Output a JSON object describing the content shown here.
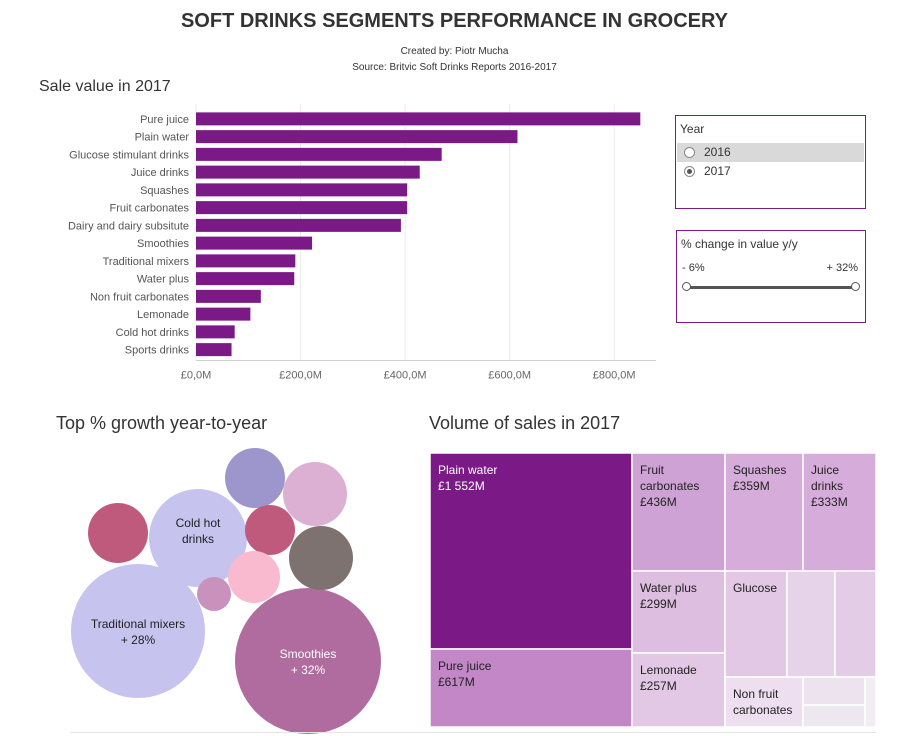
{
  "header": {
    "title": "SOFT DRINKS SEGMENTS PERFORMANCE IN GROCERY",
    "created_by": "Created by: Piotr Mucha",
    "source": "Source: Britvic Soft Drinks Reports 2016-2017"
  },
  "year_filter": {
    "title": "Year",
    "options": [
      "2016",
      "2017"
    ],
    "selected": "2017"
  },
  "change_filter": {
    "title": "% change in value y/y",
    "min_label": "- 6%",
    "max_label": "+ 32%",
    "range": [
      -6,
      32
    ]
  },
  "colors": {
    "bar": "#7b1a86",
    "panel_border": "#7b1a86"
  },
  "chart_data": [
    {
      "type": "bar",
      "orientation": "horizontal",
      "title": "Sale value in 2017",
      "categories": [
        "Pure juice",
        "Plain water",
        "Glucose stimulant drinks",
        "Juice drinks",
        "Squashes",
        "Fruit carbonates",
        "Dairy and dairy subsitute",
        "Smoothies",
        "Traditional mixers",
        "Water plus",
        "Non fruit carbonates",
        "Lemonade",
        "Cold hot drinks",
        "Sports drinks"
      ],
      "values": [
        850,
        615,
        470,
        428,
        404,
        404,
        392,
        222,
        190,
        188,
        124,
        104,
        74,
        68
      ],
      "xlim": [
        0,
        880
      ],
      "xticks": [
        0,
        200,
        400,
        600,
        800
      ],
      "xtick_labels": [
        "£0,0M",
        "£200,0M",
        "£400,0M",
        "£600,0M",
        "£800,0M"
      ],
      "grid": "vertical"
    },
    {
      "type": "bubble",
      "title": "Top % growth year-to-year",
      "bubbles": [
        {
          "label": "Smoothies",
          "value_label": "+ 32%",
          "color": "#b06c9e",
          "text_color": "#ffffff"
        },
        {
          "label": "Traditional mixers",
          "value_label": "+ 28%",
          "color": "#c6c3ef",
          "text_color": "#222222"
        },
        {
          "label": "Cold hot drinks",
          "value_label": "",
          "color": "#c6c3ef",
          "text_color": "#222222"
        },
        {
          "label": "",
          "value_label": "",
          "color": "#9d96cc"
        },
        {
          "label": "",
          "value_label": "",
          "color": "#dcb0d2"
        },
        {
          "label": "",
          "value_label": "",
          "color": "#c05a7c"
        },
        {
          "label": "",
          "value_label": "",
          "color": "#c05a7c"
        },
        {
          "label": "",
          "value_label": "",
          "color": "#7d726f"
        },
        {
          "label": "",
          "value_label": "",
          "color": "#f9b9cf"
        },
        {
          "label": "",
          "value_label": "",
          "color": "#c992bd"
        }
      ]
    },
    {
      "type": "treemap",
      "title": "Volume of sales in 2017",
      "items": [
        {
          "label": "Plain water",
          "value_label": "£1 552M",
          "value": 1552,
          "color": "#7b1a86",
          "text_color": "#ffffff"
        },
        {
          "label": "Pure juice",
          "value_label": "£617M",
          "value": 617,
          "color": "#c386c6",
          "text_color": "#222222"
        },
        {
          "label": "Fruit carbonates",
          "value_label": "£436M",
          "value": 436,
          "color": "#cfa2d5",
          "text_color": "#222222"
        },
        {
          "label": "Squashes",
          "value_label": "£359M",
          "value": 359,
          "color": "#d6acda",
          "text_color": "#222222"
        },
        {
          "label": "Juice drinks",
          "value_label": "£333M",
          "value": 333,
          "color": "#d6acda",
          "text_color": "#222222"
        },
        {
          "label": "Water plus",
          "value_label": "£299M",
          "value": 299,
          "color": "#ddbde0",
          "text_color": "#222222"
        },
        {
          "label": "Lemonade",
          "value_label": "£257M",
          "value": 257,
          "color": "#e2c8e4",
          "text_color": "#222222"
        },
        {
          "label": "Glucose",
          "value_label": "",
          "color": "#e2c8e4",
          "text_color": "#222222"
        },
        {
          "label": "Non fruit carbonates",
          "value_label": "",
          "color": "#eedff0",
          "text_color": "#222222"
        },
        {
          "label": "",
          "value_label": "",
          "color": "#e7d3e9"
        },
        {
          "label": "",
          "value_label": "",
          "color": "#e3cce5"
        },
        {
          "label": "",
          "value_label": "",
          "color": "#ece3ee"
        },
        {
          "label": "",
          "value_label": "",
          "color": "#ede7ef"
        },
        {
          "label": "",
          "value_label": "",
          "color": "#f1edf2"
        }
      ]
    }
  ]
}
